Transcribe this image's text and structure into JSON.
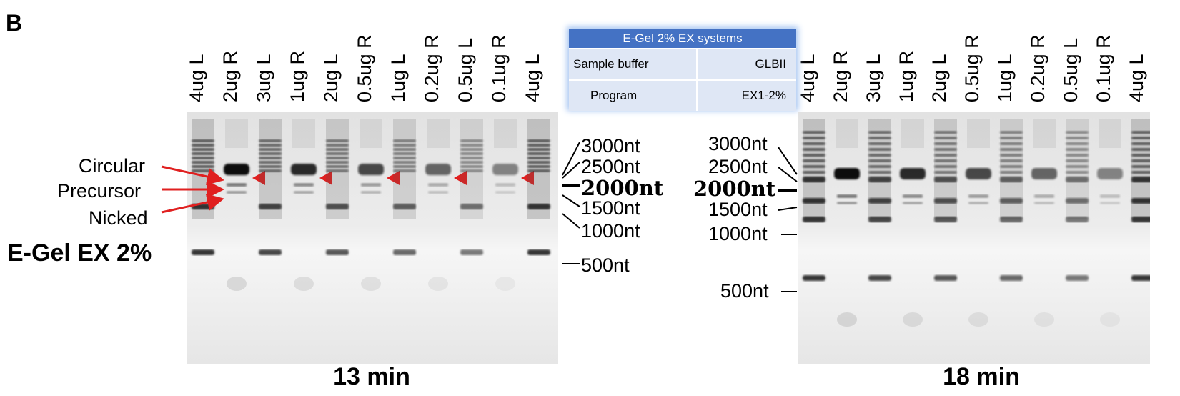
{
  "panel_letter": "B",
  "lanes": [
    "4ug L",
    "2ug R",
    "3ug L",
    "1ug R",
    "2ug L",
    "0.5ug R",
    "1ug L",
    "0.2ug R",
    "0.5ug L",
    "0.1ug R",
    "4ug L"
  ],
  "left_gel": {
    "caption": "13 min",
    "side_label": "E-Gel EX 2%",
    "annotations": [
      "Circular",
      "Precursor",
      "Nicked"
    ],
    "markers": [
      "3000nt",
      "2500nt",
      "2000nt",
      "1500nt",
      "1000nt",
      "500nt"
    ]
  },
  "right_gel": {
    "caption": "18 min",
    "markers": [
      "3000nt",
      "2500nt",
      "2000nt",
      "1500nt",
      "1000nt",
      "500nt"
    ]
  },
  "info_table": {
    "title": "E-Gel 2% EX systems",
    "rows": [
      {
        "label": "Sample buffer",
        "value": "GLBII"
      },
      {
        "label": "Program",
        "value": "EX1-2%"
      }
    ]
  },
  "colors": {
    "arrow_red": "#e02020",
    "table_header": "#4472c4",
    "table_cell": "#dfe7f5",
    "gel_bg": "#e9e9e9"
  }
}
